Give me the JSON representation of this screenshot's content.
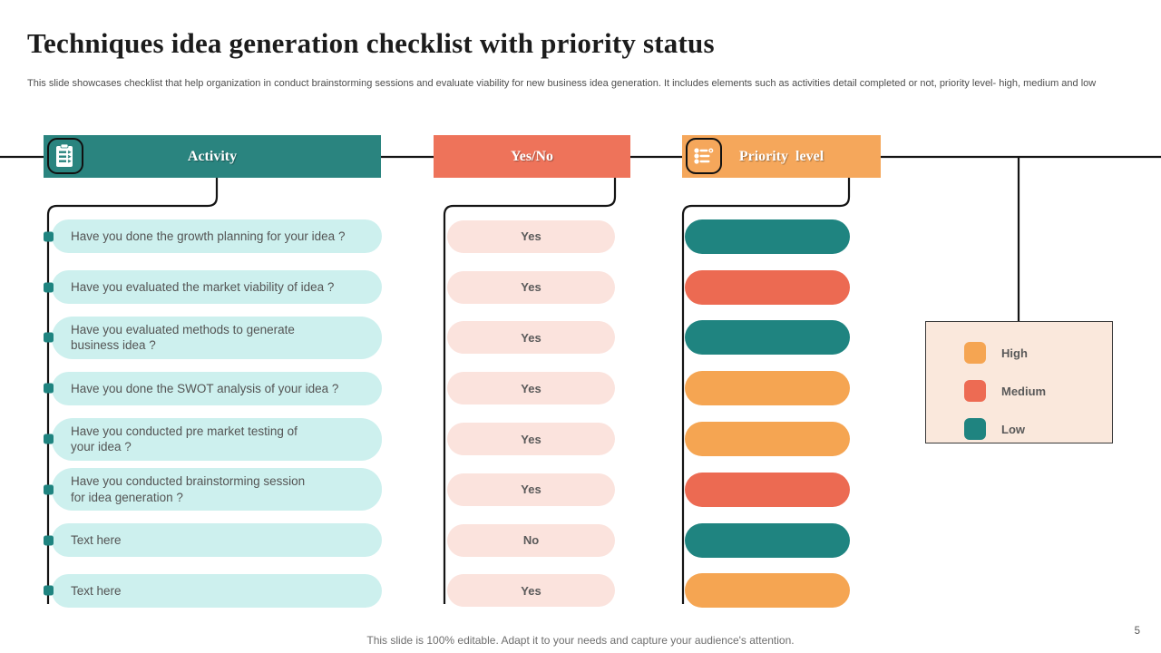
{
  "slide": {
    "title": "Techniques idea generation checklist with priority status",
    "subtitle": "This slide showcases checklist that help organization in conduct brainstorming sessions and evaluate viability for new business idea generation. It includes elements such as activities detail completed or not, priority level- high, medium and low",
    "footer": "This slide is 100% editable. Adapt it to your needs and capture your audience's attention.",
    "page_number": "5"
  },
  "columns": {
    "activity": {
      "label": "Activity",
      "icon": "checklist-icon",
      "color": "#2A847F"
    },
    "yes_no": {
      "label": "Yes/No",
      "color": "#EE735A"
    },
    "priority": {
      "label": "Priority level",
      "icon": "sliders-icon",
      "color": "#F5A75B"
    }
  },
  "rows": [
    {
      "activity": "Have you done the growth planning for your idea ?",
      "answer": "Yes",
      "priority": "low"
    },
    {
      "activity": "Have you evaluated the market viability of idea ?",
      "answer": "Yes",
      "priority": "medium"
    },
    {
      "activity": "Have you evaluated methods to generate\nbusiness idea ?",
      "answer": "Yes",
      "priority": "low"
    },
    {
      "activity": "Have you done the SWOT analysis of your idea ?",
      "answer": "Yes",
      "priority": "high"
    },
    {
      "activity": "Have you conducted pre market testing of\nyour idea ?",
      "answer": "Yes",
      "priority": "high"
    },
    {
      "activity": "Have you conducted brainstorming session\nfor idea generation ?",
      "answer": "Yes",
      "priority": "medium"
    },
    {
      "activity": "Text here",
      "answer": "No",
      "priority": "low"
    },
    {
      "activity": "Text here",
      "answer": "Yes",
      "priority": "high"
    }
  ],
  "priority_colors": {
    "high": "#F5A552",
    "medium": "#EC6A52",
    "low": "#1F8480"
  },
  "legend": [
    {
      "label": "High",
      "color": "#F5A552"
    },
    {
      "label": "Medium",
      "color": "#ED6B53"
    },
    {
      "label": "Low",
      "color": "#1F8480"
    }
  ],
  "colors": {
    "activity_pill_bg": "#CDF0EE",
    "answer_pill_bg": "#FBE3DD",
    "legend_bg": "#FAE8DC",
    "connector_line": "#141414",
    "bullet": "#1F8480"
  }
}
